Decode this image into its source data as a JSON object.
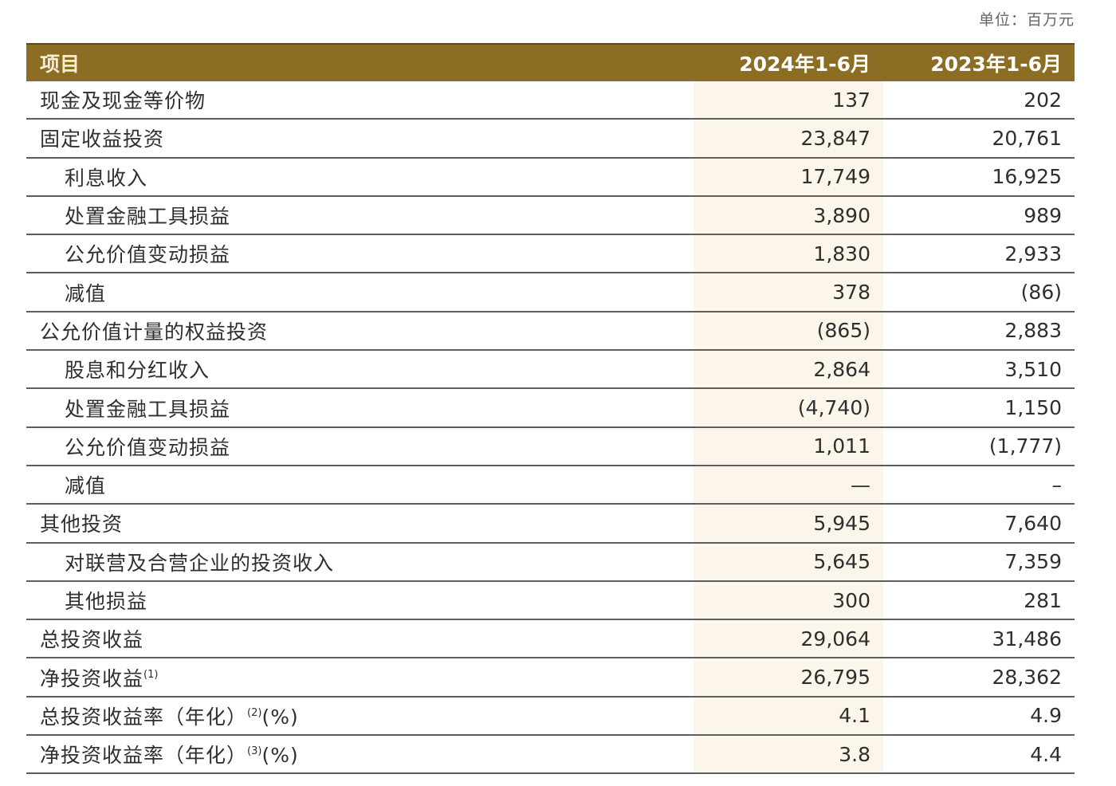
{
  "unit_label": "单位：百万元",
  "table": {
    "header": {
      "item": "项目",
      "col_2024": "2024年1-6月",
      "col_2023": "2023年1-6月"
    },
    "rows": [
      {
        "label": "现金及现金等价物",
        "sup": "",
        "suffix": "",
        "indent": false,
        "v2024": "137",
        "v2023": "202"
      },
      {
        "label": "固定收益投资",
        "sup": "",
        "suffix": "",
        "indent": false,
        "v2024": "23,847",
        "v2023": "20,761"
      },
      {
        "label": "利息收入",
        "sup": "",
        "suffix": "",
        "indent": true,
        "v2024": "17,749",
        "v2023": "16,925"
      },
      {
        "label": "处置金融工具损益",
        "sup": "",
        "suffix": "",
        "indent": true,
        "v2024": "3,890",
        "v2023": "989"
      },
      {
        "label": "公允价值变动损益",
        "sup": "",
        "suffix": "",
        "indent": true,
        "v2024": "1,830",
        "v2023": "2,933"
      },
      {
        "label": "减值",
        "sup": "",
        "suffix": "",
        "indent": true,
        "v2024": "378",
        "v2023": "(86)"
      },
      {
        "label": "公允价值计量的权益投资",
        "sup": "",
        "suffix": "",
        "indent": false,
        "v2024": "(865)",
        "v2023": "2,883"
      },
      {
        "label": "股息和分红收入",
        "sup": "",
        "suffix": "",
        "indent": true,
        "v2024": "2,864",
        "v2023": "3,510"
      },
      {
        "label": "处置金融工具损益",
        "sup": "",
        "suffix": "",
        "indent": true,
        "v2024": "(4,740)",
        "v2023": "1,150"
      },
      {
        "label": "公允价值变动损益",
        "sup": "",
        "suffix": "",
        "indent": true,
        "v2024": "1,011",
        "v2023": "(1,777)"
      },
      {
        "label": "减值",
        "sup": "",
        "suffix": "",
        "indent": true,
        "v2024": "—",
        "v2023": "–"
      },
      {
        "label": "其他投资",
        "sup": "",
        "suffix": "",
        "indent": false,
        "v2024": "5,945",
        "v2023": "7,640"
      },
      {
        "label": "对联营及合营企业的投资收入",
        "sup": "",
        "suffix": "",
        "indent": true,
        "v2024": "5,645",
        "v2023": "7,359"
      },
      {
        "label": "其他损益",
        "sup": "",
        "suffix": "",
        "indent": true,
        "v2024": "300",
        "v2023": "281"
      },
      {
        "label": "总投资收益",
        "sup": "",
        "suffix": "",
        "indent": false,
        "v2024": "29,064",
        "v2023": "31,486"
      },
      {
        "label": "净投资收益",
        "sup": "(1)",
        "suffix": "",
        "indent": false,
        "v2024": "26,795",
        "v2023": "28,362"
      },
      {
        "label": "总投资收益率（年化）",
        "sup": "(2)",
        "suffix": "(%)",
        "indent": false,
        "v2024": "4.1",
        "v2023": "4.9"
      },
      {
        "label": "净投资收益率（年化）",
        "sup": "(3)",
        "suffix": "(%)",
        "indent": false,
        "v2024": "3.8",
        "v2023": "4.4"
      }
    ]
  },
  "colors": {
    "header_bg": "#8b6e23",
    "highlight_col_bg": "#fbf5ea",
    "rule": "#5e5e5e"
  }
}
